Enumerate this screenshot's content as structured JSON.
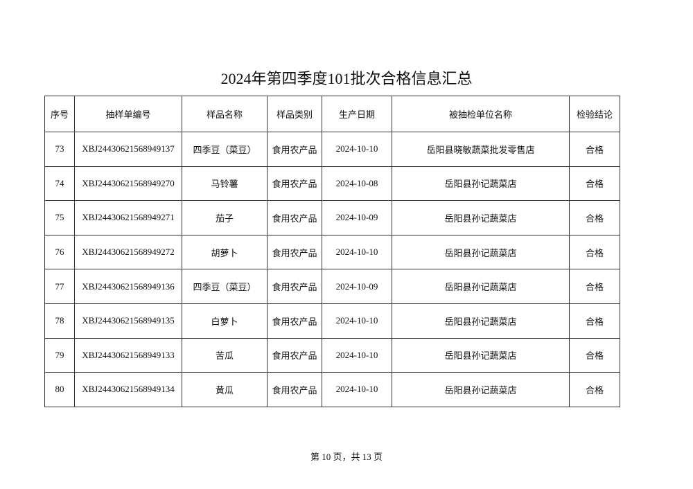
{
  "title": "2024年第四季度101批次合格信息汇总",
  "table": {
    "headers": [
      "序号",
      "抽样单编号",
      "样品名称",
      "样品类别",
      "生产日期",
      "被抽检单位名称",
      "检验结论"
    ],
    "rows": [
      [
        "73",
        "XBJ24430621568949137",
        "四季豆（菜豆）",
        "食用农产品",
        "2024-10-10",
        "岳阳县晓敏蔬菜批发零售店",
        "合格"
      ],
      [
        "74",
        "XBJ24430621568949270",
        "马铃薯",
        "食用农产品",
        "2024-10-08",
        "岳阳县孙记蔬菜店",
        "合格"
      ],
      [
        "75",
        "XBJ24430621568949271",
        "茄子",
        "食用农产品",
        "2024-10-09",
        "岳阳县孙记蔬菜店",
        "合格"
      ],
      [
        "76",
        "XBJ24430621568949272",
        "胡萝卜",
        "食用农产品",
        "2024-10-10",
        "岳阳县孙记蔬菜店",
        "合格"
      ],
      [
        "77",
        "XBJ24430621568949136",
        "四季豆（菜豆）",
        "食用农产品",
        "2024-10-09",
        "岳阳县孙记蔬菜店",
        "合格"
      ],
      [
        "78",
        "XBJ24430621568949135",
        "白萝卜",
        "食用农产品",
        "2024-10-10",
        "岳阳县孙记蔬菜店",
        "合格"
      ],
      [
        "79",
        "XBJ24430621568949133",
        "苦瓜",
        "食用农产品",
        "2024-10-10",
        "岳阳县孙记蔬菜店",
        "合格"
      ],
      [
        "80",
        "XBJ24430621568949134",
        "黄瓜",
        "食用农产品",
        "2024-10-10",
        "岳阳县孙记蔬菜店",
        "合格"
      ]
    ]
  },
  "footer": "第 10 页，共 13 页"
}
